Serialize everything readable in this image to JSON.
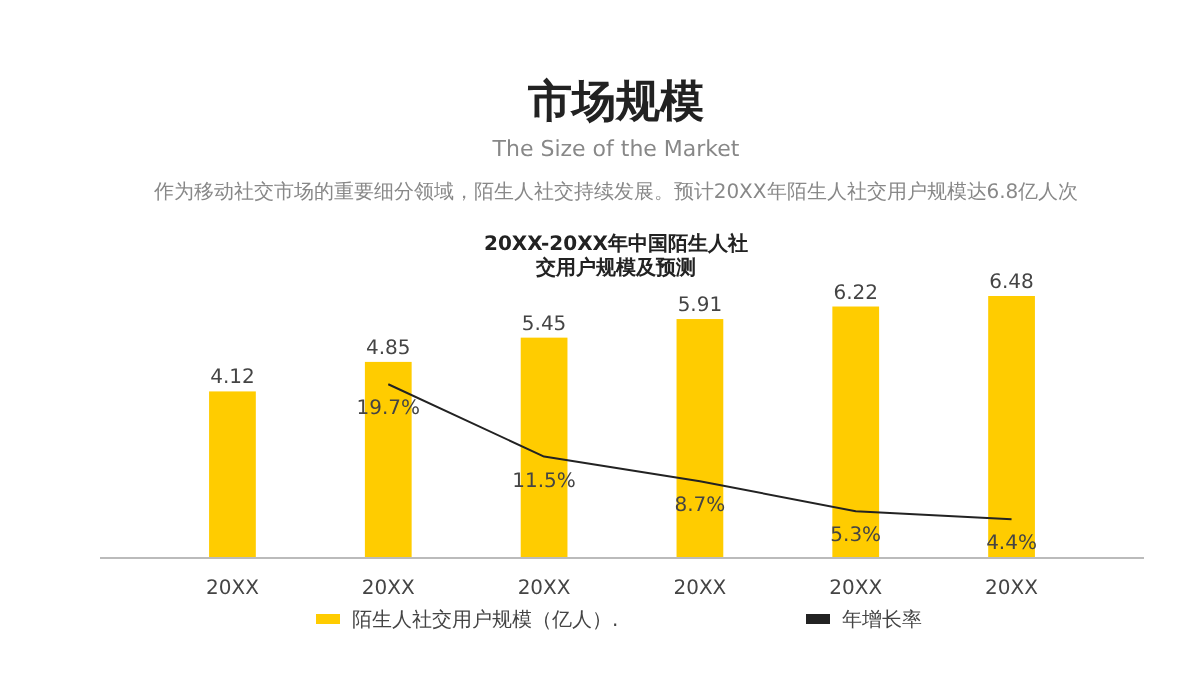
{
  "chart_data": {
    "type": "bar",
    "title": "20XX-20XX年中国陌生人社交用户规模及预测",
    "annotations": [
      "市场规模",
      "The Size of the Market",
      "作为移动社交市场的重要细分领域，陌生人社交持续发展。预计20XX年陌生人社交用户规模达6.8亿人次"
    ],
    "categories": [
      "20XX",
      "20XX",
      "20XX",
      "20XX",
      "20XX",
      "20XX"
    ],
    "series": [
      {
        "name": "陌生人社交用户规模（亿人）.",
        "color": "#ffcc00",
        "values": [
          4.12,
          4.85,
          5.45,
          5.91,
          6.22,
          6.48
        ],
        "value_labels": [
          "4.12",
          "4.85",
          "5.45",
          "5.91",
          "6.22",
          "6.48"
        ]
      },
      {
        "name": "年增长率",
        "type": "line",
        "axis": "y2",
        "color": "#222222",
        "values": [
          null,
          19.7,
          11.5,
          8.7,
          5.3,
          4.4
        ],
        "value_labels": [
          null,
          "19.7%",
          "11.5%",
          "8.7%",
          "5.3%",
          "4.4%"
        ]
      }
    ],
    "legend": "bottom"
  }
}
